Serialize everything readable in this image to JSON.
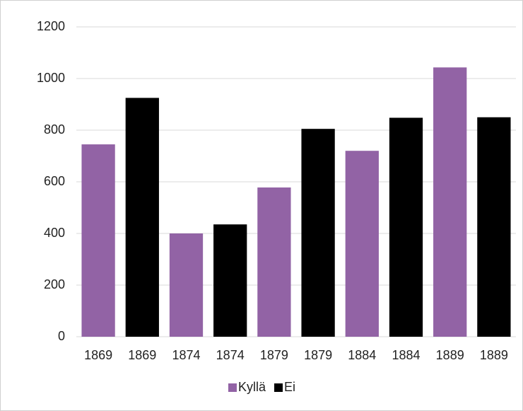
{
  "chart_data": {
    "type": "bar",
    "categories": [
      "1869",
      "1869",
      "1874",
      "1874",
      "1879",
      "1879",
      "1884",
      "1884",
      "1889",
      "1889"
    ],
    "series": [
      {
        "name": "Kyllä",
        "color": "#9263a5",
        "values": [
          745,
          null,
          400,
          null,
          578,
          null,
          720,
          null,
          1043,
          null
        ]
      },
      {
        "name": "Ei",
        "color": "#000000",
        "values": [
          null,
          925,
          null,
          435,
          null,
          805,
          null,
          848,
          null,
          850
        ]
      }
    ],
    "ylim": [
      0,
      1200
    ],
    "yticks": [
      0,
      200,
      400,
      600,
      800,
      1000,
      1200
    ],
    "grid": true,
    "legend": "bottom"
  }
}
